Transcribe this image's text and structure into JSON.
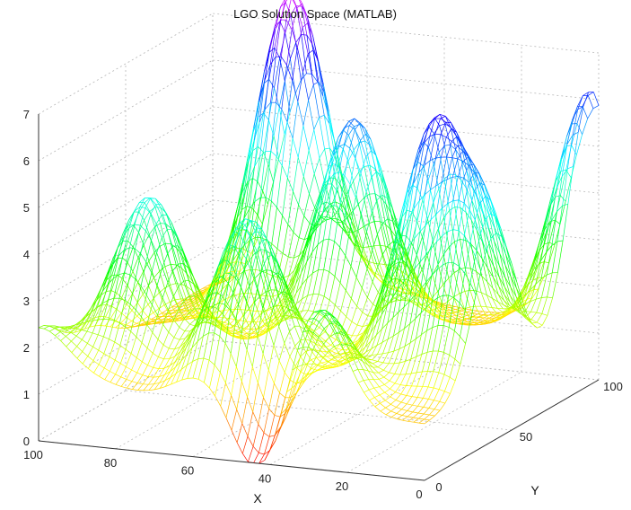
{
  "chart_data": {
    "type": "surface-3d-mesh",
    "title": "LGO Solution Space (MATLAB)",
    "xlabel": "X",
    "ylabel": "Y",
    "zlabel": "",
    "xlim": [
      0,
      100
    ],
    "ylim": [
      0,
      100
    ],
    "zlim": [
      0,
      7
    ],
    "x_ticks": [
      "100",
      "80",
      "60",
      "40",
      "20",
      "0"
    ],
    "y_ticks": [
      "0",
      "50",
      "100"
    ],
    "z_ticks": [
      "0",
      "1",
      "2",
      "3",
      "4",
      "5",
      "6",
      "7"
    ],
    "grid": true,
    "colormap": [
      "#ff0000",
      "#ffff00",
      "#00ff00",
      "#00ffff",
      "#0000ff",
      "#ff00ff"
    ],
    "peaks": [
      {
        "x": 100,
        "y": 0,
        "z": 2.4
      },
      {
        "x": 85,
        "y": 30,
        "z": 4.7
      },
      {
        "x": 75,
        "y": 90,
        "z": 7.9
      },
      {
        "x": 55,
        "y": 20,
        "z": 4.8
      },
      {
        "x": 50,
        "y": 70,
        "z": 5.8
      },
      {
        "x": 30,
        "y": 0,
        "z": 4.6
      },
      {
        "x": 20,
        "y": 50,
        "z": 6.1
      },
      {
        "x": 5,
        "y": 40,
        "z": 5.0
      },
      {
        "x": 0,
        "y": 95,
        "z": 6.3
      }
    ],
    "minimum": {
      "x": 40,
      "y": 0,
      "z": 0
    }
  }
}
